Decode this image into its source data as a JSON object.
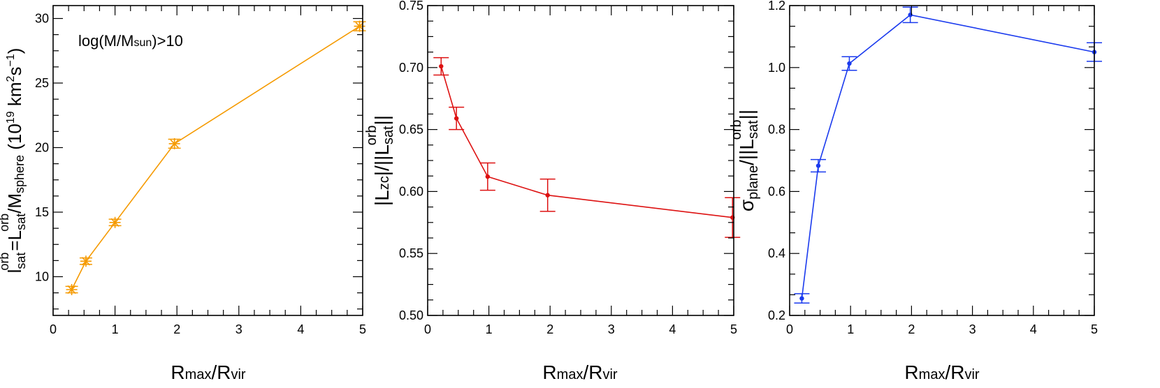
{
  "chart_data": [
    {
      "type": "line",
      "x": [
        0.3,
        0.53,
        1.0,
        1.96,
        4.95
      ],
      "series": [
        {
          "values": [
            9.0,
            11.2,
            14.2,
            20.3,
            29.4
          ],
          "errors": [
            0.25,
            0.25,
            0.25,
            0.35,
            0.35
          ]
        }
      ],
      "marker": "star",
      "color": "#f59a00",
      "xlim": [
        0,
        5
      ],
      "ylim": [
        7,
        31
      ],
      "x_ticks": [
        "0",
        "1",
        "2",
        "3",
        "4",
        "5"
      ],
      "y_ticks": [
        "10",
        "15",
        "20",
        "25",
        "30"
      ],
      "annotation": "log(M/Msun)>10",
      "xlabel": "Rmax/Rvir",
      "ylabel": "lsatorb=Lsatorb/Msphere (1019 km2s−1)"
    },
    {
      "type": "line",
      "x": [
        0.22,
        0.47,
        0.98,
        1.96,
        4.98
      ],
      "series": [
        {
          "values": [
            0.701,
            0.659,
            0.612,
            0.597,
            0.579
          ],
          "errors": [
            0.007,
            0.009,
            0.011,
            0.013,
            0.016
          ]
        }
      ],
      "marker": "dot",
      "color": "#dd1111",
      "xlim": [
        0,
        5
      ],
      "ylim": [
        0.5,
        0.75
      ],
      "x_ticks": [
        "0",
        "1",
        "2",
        "3",
        "4",
        "5"
      ],
      "y_ticks": [
        "0.50",
        "0.55",
        "0.60",
        "0.65",
        "0.70",
        "0.75"
      ],
      "xlabel": "Rmax/Rvir",
      "ylabel": "|Lzc|/||Lsatorb||"
    },
    {
      "type": "line",
      "x": [
        0.2,
        0.47,
        0.98,
        1.98,
        5.0
      ],
      "series": [
        {
          "values": [
            0.255,
            0.683,
            1.013,
            1.17,
            1.05
          ],
          "errors": [
            0.015,
            0.02,
            0.022,
            0.025,
            0.03
          ]
        }
      ],
      "marker": "dot",
      "color": "#1a3aee",
      "xlim": [
        0,
        5
      ],
      "ylim": [
        0.2,
        1.2
      ],
      "x_ticks": [
        "0",
        "1",
        "2",
        "3",
        "4",
        "5"
      ],
      "y_ticks": [
        "0.2",
        "0.4",
        "0.6",
        "0.8",
        "1.0",
        "1.2"
      ],
      "xlabel": "Rmax/Rvir",
      "ylabel": "σplane/||Lsatorb||"
    }
  ]
}
